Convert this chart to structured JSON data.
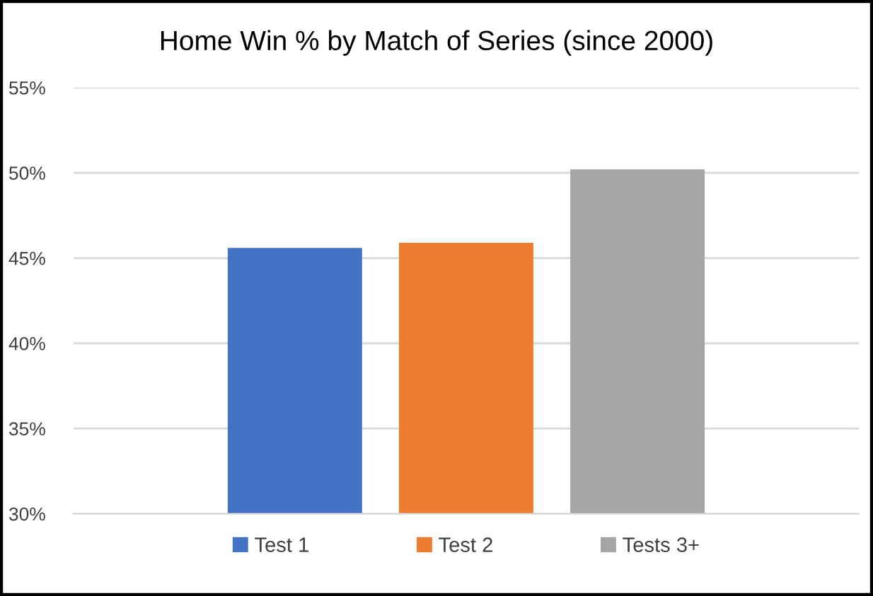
{
  "chart_data": {
    "type": "bar",
    "title": "Home Win % by Match of Series (since 2000)",
    "categories": [
      null
    ],
    "series": [
      {
        "name": "Test 1",
        "color": "#4472c4",
        "values": [
          45.6
        ]
      },
      {
        "name": "Test 2",
        "color": "#ed7d31",
        "values": [
          45.9
        ]
      },
      {
        "name": "Tests 3+",
        "color": "#a5a5a5",
        "values": [
          50.2
        ]
      }
    ],
    "ylim": [
      30,
      55
    ],
    "yticks": [
      {
        "value": 30,
        "label": "30%"
      },
      {
        "value": 35,
        "label": "35%"
      },
      {
        "value": 40,
        "label": "40%"
      },
      {
        "value": 45,
        "label": "45%"
      },
      {
        "value": 50,
        "label": "50%"
      },
      {
        "value": 55,
        "label": "55%"
      }
    ],
    "grid": "y",
    "legend": "bottom",
    "tick_labels": "y"
  }
}
